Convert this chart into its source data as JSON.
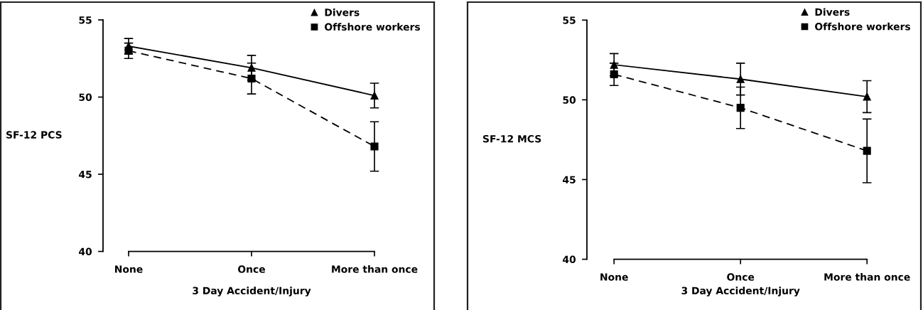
{
  "chart_data": [
    {
      "type": "line",
      "categories": [
        "None",
        "Once",
        "More than once"
      ],
      "xlabel": "3 Day Accident/Injury",
      "ylabel": "SF-12 PCS",
      "ylim": [
        40,
        55
      ],
      "yticks": [
        40,
        45,
        50,
        55
      ],
      "legend": "top right",
      "series": [
        {
          "name": "Divers",
          "color": "#000000",
          "marker": "triangle",
          "line_style": "solid",
          "values": [
            53.3,
            51.9,
            50.1
          ],
          "errors": [
            0.5,
            0.8,
            0.8
          ]
        },
        {
          "name": "Offshore workers",
          "color": "#000000",
          "marker": "square",
          "line_style": "dashed",
          "values": [
            53.0,
            51.2,
            46.8
          ],
          "errors": [
            0.5,
            1.0,
            1.6
          ]
        }
      ]
    },
    {
      "type": "line",
      "categories": [
        "None",
        "Once",
        "More than once"
      ],
      "xlabel": "3 Day Accident/Injury",
      "ylabel": "SF-12 MCS",
      "ylim": [
        40,
        55
      ],
      "yticks": [
        40,
        45,
        50,
        55
      ],
      "legend": "top right",
      "series": [
        {
          "name": "Divers",
          "color": "#000000",
          "marker": "triangle",
          "line_style": "solid",
          "values": [
            52.2,
            51.3,
            50.2
          ],
          "errors": [
            0.7,
            1.0,
            1.0
          ]
        },
        {
          "name": "Offshore workers",
          "color": "#000000",
          "marker": "square",
          "line_style": "dashed",
          "values": [
            51.6,
            49.5,
            46.8
          ],
          "errors": [
            0.7,
            1.3,
            2.0
          ]
        }
      ]
    }
  ]
}
